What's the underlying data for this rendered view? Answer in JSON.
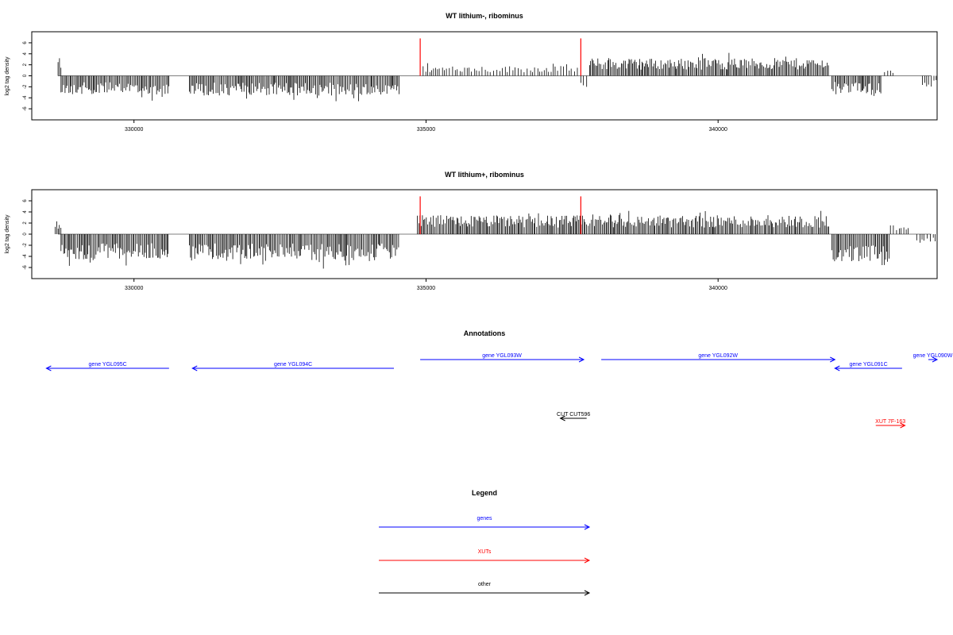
{
  "chart_data": [
    {
      "type": "bar",
      "title": "WT lithium-, ribominus",
      "xlabel": "",
      "ylabel": "log2 tag density",
      "xlim": [
        328250,
        343750
      ],
      "ylim": [
        -7,
        7
      ],
      "xticks": [
        330000,
        335000,
        340000
      ],
      "xtick_labels": [
        "330000",
        "335000",
        "340000"
      ],
      "yticks": [
        -6,
        -4,
        -2,
        0,
        2,
        4,
        6
      ],
      "ytick_labels": [
        "-6",
        "-4",
        "-2",
        "0",
        "2",
        "4",
        "6"
      ],
      "markers": [
        334900,
        337650
      ],
      "marker_color": "#ff0000",
      "profile": [
        {
          "start": 328700,
          "end": 328750,
          "y": 3.2
        },
        {
          "start": 328750,
          "end": 330600,
          "y": -3.4
        },
        {
          "start": 330950,
          "end": 334550,
          "y": -3.6
        },
        {
          "start": 334950,
          "end": 337600,
          "y": 1.8
        },
        {
          "start": 337650,
          "end": 337750,
          "y": -2.3
        },
        {
          "start": 337800,
          "end": 341900,
          "y": 3.2
        },
        {
          "start": 341950,
          "end": 342800,
          "y": -3.2
        },
        {
          "start": 342850,
          "end": 343000,
          "y": 1.2
        },
        {
          "start": 343500,
          "end": 343750,
          "y": -2.0
        }
      ]
    },
    {
      "type": "bar",
      "title": "WT lithium+, ribominus",
      "xlabel": "",
      "ylabel": "log2 tag density",
      "xlim": [
        328250,
        343750
      ],
      "ylim": [
        -7,
        7
      ],
      "xticks": [
        330000,
        335000,
        340000
      ],
      "xtick_labels": [
        "330000",
        "335000",
        "340000"
      ],
      "yticks": [
        -6,
        -4,
        -2,
        0,
        2,
        4,
        6
      ],
      "ytick_labels": [
        "-6",
        "-4",
        "-2",
        "0",
        "2",
        "4",
        "6"
      ],
      "markers": [
        334900,
        337650
      ],
      "marker_color": "#ff0000",
      "profile": [
        {
          "start": 328650,
          "end": 328750,
          "y": 2.6
        },
        {
          "start": 328750,
          "end": 330600,
          "y": -4.6
        },
        {
          "start": 330950,
          "end": 334550,
          "y": -4.8
        },
        {
          "start": 334850,
          "end": 341900,
          "y": 3.4
        },
        {
          "start": 341950,
          "end": 342950,
          "y": -5.0
        },
        {
          "start": 342950,
          "end": 343300,
          "y": 1.6
        },
        {
          "start": 343400,
          "end": 343750,
          "y": -1.6
        }
      ]
    }
  ],
  "annotations": {
    "title": "Annotations",
    "xlim": [
      328250,
      343750
    ],
    "genes": [
      {
        "label": "gene YGL095C",
        "start": 328500,
        "end": 330600,
        "strand": "-",
        "row": 2,
        "color": "#0000ff"
      },
      {
        "label": "gene YGL094C",
        "start": 331000,
        "end": 334450,
        "strand": "-",
        "row": 2,
        "color": "#0000ff"
      },
      {
        "label": "gene YGL093W",
        "start": 334900,
        "end": 337700,
        "strand": "+",
        "row": 1,
        "color": "#0000ff"
      },
      {
        "label": "gene YGL092W",
        "start": 338000,
        "end": 342000,
        "strand": "+",
        "row": 1,
        "color": "#0000ff"
      },
      {
        "label": "gene YGL091C",
        "start": 342000,
        "end": 343150,
        "strand": "-",
        "row": 2,
        "color": "#0000ff"
      },
      {
        "label": "gene YGL090W",
        "start": 343600,
        "end": 344300,
        "strand": "+",
        "row": 1,
        "color": "#0000ff"
      }
    ],
    "other_features": [
      {
        "label": "CUT CUT596",
        "start": 337300,
        "end": 337750,
        "strand": "-",
        "color": "#000000"
      },
      {
        "label": "XUT 7F-163",
        "start": 342700,
        "end": 343200,
        "strand": "+",
        "color": "#ff0000"
      }
    ]
  },
  "legend": {
    "title": "Legend",
    "items": [
      {
        "label": "genes",
        "color": "#0000ff"
      },
      {
        "label": "XUTs",
        "color": "#ff0000"
      },
      {
        "label": "other",
        "color": "#000000"
      }
    ]
  }
}
